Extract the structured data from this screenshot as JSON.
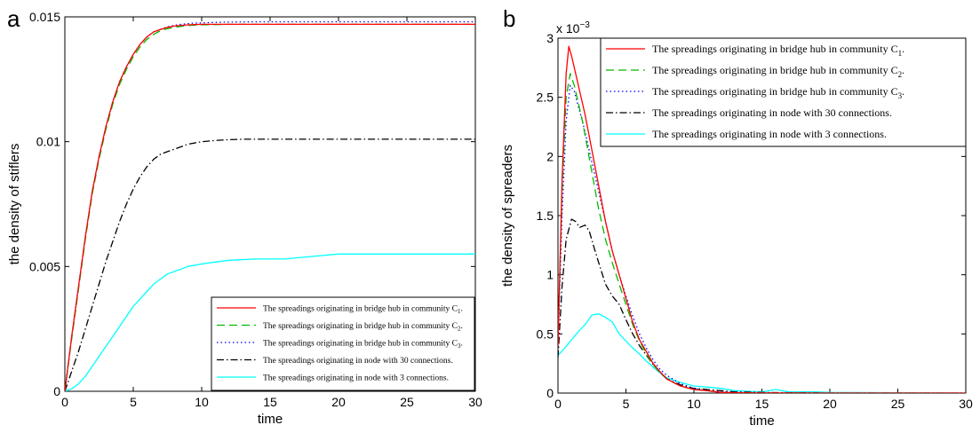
{
  "chart_data": [
    {
      "panel": "a",
      "type": "line",
      "xlabel": "time",
      "ylabel": "the density of stiflers",
      "xlim": [
        0,
        30
      ],
      "ylim": [
        0,
        0.015
      ],
      "xticks": [
        0,
        5,
        10,
        15,
        20,
        25,
        30
      ],
      "xtick_labels": [
        "0",
        "5",
        "10",
        "15",
        "20",
        "25",
        "30"
      ],
      "yticks": [
        0,
        0.005,
        0.01,
        0.015
      ],
      "ytick_labels": [
        "0",
        "0.005",
        "0.01",
        "0.015"
      ],
      "exponent_label": "",
      "legend_position": "lower-right",
      "series": [
        {
          "name": "The spreadings originating in bridge hub in community C",
          "sub": "1",
          "suffix": ".",
          "color": "#ff0000",
          "dash": "solid",
          "x": [
            0,
            0.5,
            1,
            1.5,
            2,
            2.5,
            3,
            3.5,
            4,
            4.5,
            5,
            5.5,
            6,
            6.5,
            7,
            7.5,
            8,
            8.5,
            9,
            9.5,
            10,
            11,
            12,
            14,
            16,
            20,
            25,
            30
          ],
          "y": [
            0,
            0.0022,
            0.0042,
            0.0062,
            0.008,
            0.0094,
            0.0106,
            0.0116,
            0.0124,
            0.013,
            0.0135,
            0.0139,
            0.0142,
            0.0144,
            0.0145,
            0.01458,
            0.01463,
            0.01466,
            0.01468,
            0.01469,
            0.0147,
            0.0147,
            0.0147,
            0.0147,
            0.0147,
            0.0147,
            0.0147,
            0.0147
          ]
        },
        {
          "name": "The spreadings originating in bridge hub in community C",
          "sub": "2",
          "suffix": ".",
          "color": "#00bb00",
          "dash": "dashed",
          "x": [
            0,
            0.5,
            1,
            1.5,
            2,
            2.5,
            3,
            3.5,
            4,
            4.5,
            5,
            5.5,
            6,
            6.5,
            7,
            7.5,
            8,
            8.5,
            9,
            9.5,
            10,
            11,
            12,
            14,
            16,
            20,
            25,
            30
          ],
          "y": [
            0,
            0.0021,
            0.0041,
            0.0061,
            0.0079,
            0.0093,
            0.0105,
            0.0115,
            0.0123,
            0.0129,
            0.0134,
            0.0138,
            0.0141,
            0.0143,
            0.01445,
            0.01453,
            0.01458,
            0.01462,
            0.01465,
            0.01467,
            0.01468,
            0.01469,
            0.0147,
            0.0147,
            0.0147,
            0.0147,
            0.0147,
            0.0147
          ]
        },
        {
          "name": "The spreadings originating in bridge hub in community C",
          "sub": "3",
          "suffix": ".",
          "color": "#0000ff",
          "dash": "dotted",
          "x": [
            0,
            0.5,
            1,
            1.5,
            2,
            2.5,
            3,
            3.5,
            4,
            4.5,
            5,
            5.5,
            6,
            6.5,
            7,
            7.5,
            8,
            8.5,
            9,
            9.5,
            10,
            11,
            12,
            14,
            16,
            20,
            25,
            30
          ],
          "y": [
            0,
            0.0022,
            0.0042,
            0.0062,
            0.008,
            0.0094,
            0.0106,
            0.0116,
            0.0124,
            0.013,
            0.0135,
            0.0139,
            0.0142,
            0.0144,
            0.0145,
            0.0146,
            0.01466,
            0.0147,
            0.01473,
            0.01475,
            0.01476,
            0.01478,
            0.01479,
            0.0148,
            0.0148,
            0.0148,
            0.0148,
            0.0148
          ]
        },
        {
          "name": "The spreadings originating in node with 30 connections.",
          "sub": "",
          "suffix": "",
          "color": "#000000",
          "dash": "dashdot",
          "x": [
            0,
            0.5,
            1,
            1.5,
            2,
            2.5,
            3,
            3.5,
            4,
            4.5,
            5,
            5.5,
            6,
            6.5,
            7,
            7.5,
            8,
            9,
            10,
            11,
            12,
            13,
            14,
            16,
            20,
            25,
            30
          ],
          "y": [
            0,
            0.0008,
            0.0016,
            0.0025,
            0.0034,
            0.0043,
            0.0052,
            0.006,
            0.0068,
            0.0075,
            0.0081,
            0.0086,
            0.009,
            0.0093,
            0.0095,
            0.0096,
            0.0097,
            0.0099,
            0.01,
            0.01005,
            0.01008,
            0.0101,
            0.0101,
            0.0101,
            0.0101,
            0.0101,
            0.0101
          ]
        },
        {
          "name": "The spreadings originating in node with 3 connections.",
          "sub": "",
          "suffix": "",
          "color": "#00ffff",
          "dash": "solid",
          "x": [
            0,
            0.5,
            1,
            1.5,
            2,
            2.5,
            3,
            3.5,
            4,
            4.5,
            5,
            5.5,
            6,
            6.5,
            7,
            7.5,
            8,
            9,
            10,
            11,
            12,
            14,
            16,
            18,
            20,
            25,
            30
          ],
          "y": [
            0,
            0.0001,
            0.0003,
            0.0006,
            0.001,
            0.0014,
            0.0018,
            0.0022,
            0.0026,
            0.003,
            0.0034,
            0.0037,
            0.004,
            0.0043,
            0.0045,
            0.0047,
            0.0048,
            0.005,
            0.0051,
            0.00518,
            0.00525,
            0.0053,
            0.0053,
            0.0054,
            0.0055,
            0.0055,
            0.0055
          ]
        }
      ]
    },
    {
      "panel": "b",
      "type": "line",
      "xlabel": "time",
      "ylabel": "the density of spreaders",
      "xlim": [
        0,
        30
      ],
      "ylim": [
        0,
        3
      ],
      "xticks": [
        0,
        5,
        10,
        15,
        20,
        25,
        30
      ],
      "xtick_labels": [
        "0",
        "5",
        "10",
        "15",
        "20",
        "25",
        "30"
      ],
      "yticks": [
        0,
        0.5,
        1,
        1.5,
        2,
        2.5,
        3
      ],
      "ytick_labels": [
        "0",
        "0.5",
        "1",
        "1.5",
        "2",
        "2.5",
        "3"
      ],
      "exponent_label": "x 10",
      "exponent_power": "−3",
      "legend_position": "top-right",
      "series": [
        {
          "name": "The spreadings originating in bridge hub in community C",
          "sub": "1",
          "suffix": ".",
          "color": "#ff0000",
          "dash": "solid",
          "x": [
            0,
            0.3,
            0.6,
            0.8,
            1,
            1.3,
            1.6,
            2,
            2.5,
            3,
            3.5,
            4,
            4.5,
            5,
            5.5,
            6,
            6.5,
            7,
            7.5,
            8,
            9,
            10,
            11,
            12,
            13,
            15,
            20,
            25,
            30
          ],
          "y": [
            0.4,
            1.8,
            2.7,
            2.93,
            2.85,
            2.7,
            2.55,
            2.35,
            2.05,
            1.75,
            1.45,
            1.2,
            1.0,
            0.8,
            0.6,
            0.45,
            0.35,
            0.25,
            0.18,
            0.12,
            0.06,
            0.03,
            0.02,
            0.005,
            0.003,
            0.001,
            0,
            0,
            0
          ]
        },
        {
          "name": "The spreadings originating in bridge hub in community C",
          "sub": "2",
          "suffix": ".",
          "color": "#00bb00",
          "dash": "dashed",
          "x": [
            0,
            0.3,
            0.6,
            0.9,
            1.2,
            1.5,
            1.8,
            2.2,
            2.6,
            3,
            3.5,
            4,
            4.5,
            5,
            5.5,
            6,
            6.5,
            7,
            7.5,
            8,
            9,
            10,
            11,
            12,
            13,
            15,
            20,
            25,
            30
          ],
          "y": [
            0.45,
            1.7,
            2.5,
            2.7,
            2.6,
            2.45,
            2.3,
            2.05,
            1.8,
            1.55,
            1.3,
            1.1,
            0.92,
            0.75,
            0.58,
            0.44,
            0.33,
            0.24,
            0.17,
            0.12,
            0.06,
            0.03,
            0.02,
            0.005,
            0.003,
            0.001,
            0,
            0,
            0
          ]
        },
        {
          "name": "The spreadings originating in bridge hub in community C",
          "sub": "3",
          "suffix": ".",
          "color": "#0000ff",
          "dash": "dotted",
          "x": [
            0,
            0.3,
            0.6,
            0.9,
            1.2,
            1.5,
            1.8,
            2.2,
            2.6,
            3,
            3.5,
            4,
            4.5,
            5,
            5.5,
            6,
            6.5,
            7,
            7.5,
            8,
            9,
            10,
            11,
            12,
            13,
            15,
            20,
            25,
            30
          ],
          "y": [
            0.4,
            1.5,
            2.3,
            2.6,
            2.55,
            2.42,
            2.3,
            2.1,
            1.9,
            1.7,
            1.45,
            1.2,
            1.0,
            0.82,
            0.65,
            0.5,
            0.38,
            0.28,
            0.2,
            0.15,
            0.08,
            0.04,
            0.02,
            0.01,
            0.005,
            0.002,
            0,
            0,
            0
          ]
        },
        {
          "name": "The spreadings originating in node with 30 connections.",
          "sub": "",
          "suffix": "",
          "color": "#000000",
          "dash": "dashdot",
          "x": [
            0,
            0.3,
            0.6,
            1,
            1.3,
            1.6,
            2,
            2.3,
            2.6,
            3,
            3.5,
            4,
            4.5,
            5,
            5.5,
            6,
            6.5,
            7,
            7.5,
            8,
            9,
            10,
            11,
            12,
            13,
            15,
            20,
            25,
            30
          ],
          "y": [
            0.3,
            0.9,
            1.3,
            1.47,
            1.45,
            1.4,
            1.42,
            1.37,
            1.25,
            1.1,
            0.92,
            0.82,
            0.75,
            0.62,
            0.5,
            0.4,
            0.32,
            0.24,
            0.18,
            0.12,
            0.07,
            0.04,
            0.03,
            0.02,
            0.01,
            0.005,
            0,
            0,
            0
          ]
        },
        {
          "name": "The spreadings originating in node with 3 connections.",
          "sub": "",
          "suffix": "",
          "color": "#00ffff",
          "dash": "solid",
          "x": [
            0,
            0.5,
            1,
            1.5,
            2,
            2.5,
            3,
            3.5,
            4,
            4.5,
            5,
            5.5,
            6,
            6.5,
            7,
            7.5,
            8,
            9,
            10,
            11,
            12,
            13,
            14,
            15,
            16,
            17,
            18,
            19,
            20,
            25,
            30
          ],
          "y": [
            0.32,
            0.38,
            0.45,
            0.52,
            0.58,
            0.66,
            0.67,
            0.64,
            0.6,
            0.5,
            0.44,
            0.38,
            0.33,
            0.27,
            0.22,
            0.17,
            0.13,
            0.09,
            0.06,
            0.05,
            0.04,
            0.02,
            0.015,
            0.01,
            0.03,
            0.01,
            0.01,
            0.01,
            0.005,
            0.003,
            0
          ]
        }
      ]
    }
  ]
}
